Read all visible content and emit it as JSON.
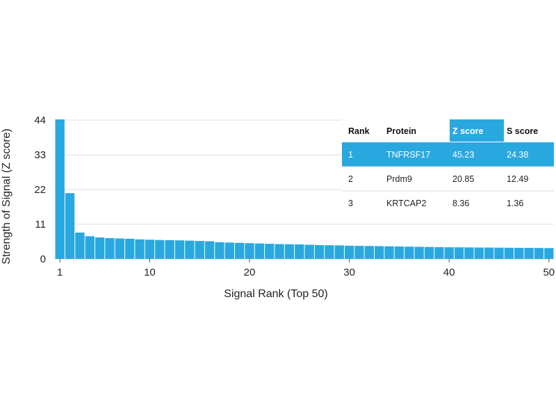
{
  "chart_data": {
    "type": "bar",
    "ylabel": "Strength of Signal (Z score)",
    "xlabel": "Signal Rank (Top 50)",
    "ylim": [
      0,
      44
    ],
    "yticks": [
      0,
      11,
      22,
      33,
      44
    ],
    "xticks": [
      1,
      10,
      20,
      30,
      40,
      50
    ],
    "grid": true,
    "bar_color": "#29a8e0",
    "values": [
      45.23,
      20.85,
      8.36,
      7.2,
      6.8,
      6.6,
      6.5,
      6.4,
      6.2,
      6.1,
      6.0,
      5.95,
      5.9,
      5.8,
      5.7,
      5.6,
      5.3,
      5.2,
      5.1,
      5.0,
      4.9,
      4.8,
      4.7,
      4.65,
      4.6,
      4.5,
      4.4,
      4.35,
      4.3,
      4.2,
      4.15,
      4.1,
      4.05,
      4.0,
      3.95,
      3.9,
      3.85,
      3.8,
      3.75,
      3.7,
      3.68,
      3.65,
      3.62,
      3.6,
      3.58,
      3.55,
      3.52,
      3.5,
      3.48,
      3.45
    ]
  },
  "table": {
    "highlight_color": "#29a8e0",
    "headers": [
      "Rank",
      "Protein",
      "Z score",
      "S score"
    ],
    "rows": [
      [
        "1",
        "TNFRSF17",
        "45.23",
        "24.38"
      ],
      [
        "2",
        "Prdm9",
        "20.85",
        "12.49"
      ],
      [
        "3",
        "KRTCAP2",
        "8.36",
        "1.36"
      ]
    ]
  }
}
